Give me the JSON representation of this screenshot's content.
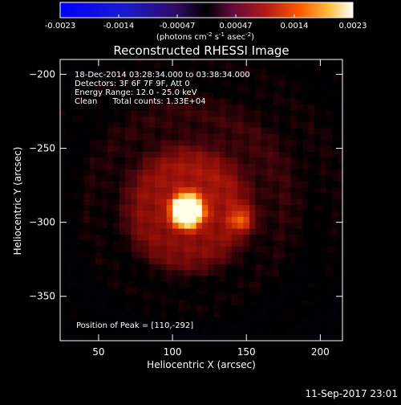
{
  "chart_data": {
    "type": "heatmap",
    "title": "Reconstructed RHESSI Image",
    "xlabel": "Heliocentric X (arcsec)",
    "ylabel": "Heliocentric Y (arcsec)",
    "xlim": [
      24,
      215
    ],
    "ylim": [
      -380,
      -190
    ],
    "x_ticks": [
      50,
      100,
      150,
      200
    ],
    "y_ticks": [
      -200,
      -250,
      -300,
      -350
    ],
    "colorbar": {
      "ticks": [
        "-0.0023",
        "-0.0014",
        "-0.00047",
        "0.00047",
        "0.0014",
        "0.0023"
      ],
      "range": [
        -0.0023,
        0.0023
      ],
      "unit_label_parts": [
        "(photons cm",
        "-2",
        " s",
        "-1",
        " asec",
        "-2",
        ")"
      ]
    },
    "annotations": [
      "18-Dec-2014 03:28:34.000 to 03:38:34.000",
      "Detectors: 3F 6F 7F 9F, Att 0",
      "Energy Range: 12.0 - 25.0 keV",
      "Clean      Total counts: 1.33E+04"
    ],
    "peak_label": "Position of Peak = [110,-292]",
    "peak": {
      "x": 110,
      "y": -292,
      "value": 0.0023
    },
    "secondary_source": {
      "x": 147,
      "y": -298,
      "value": 0.0013
    },
    "grid": false
  },
  "footer": {
    "timestamp": "11-Sep-2017 23:01"
  }
}
